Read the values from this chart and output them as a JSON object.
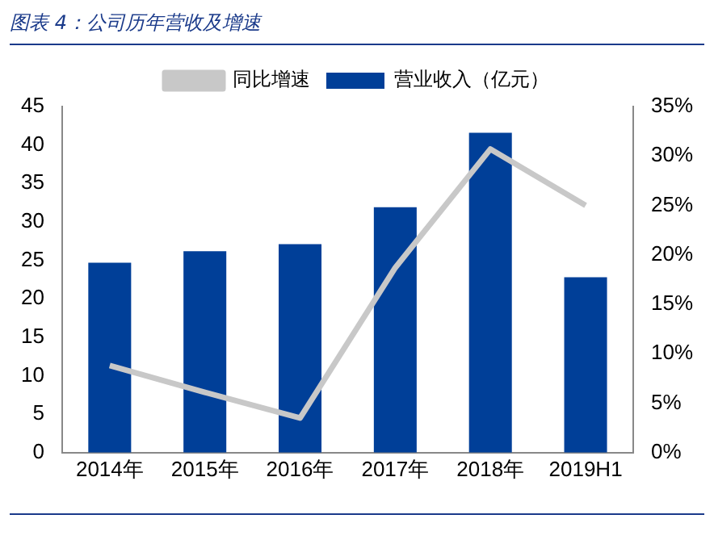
{
  "chart_data": {
    "type": "bar",
    "title": "图表 4：公司历年营收及增速",
    "categories": [
      "2014年",
      "2015年",
      "2016年",
      "2017年",
      "2018年",
      "2019H1"
    ],
    "series": [
      {
        "name": "营业收入（亿元）",
        "color": "#003f98",
        "values": [
          24.7,
          26.2,
          27.1,
          31.9,
          41.6,
          22.8
        ]
      },
      {
        "name": "同比增速",
        "type": "line",
        "axis": "y2",
        "color": "#c8c8c8",
        "marker": "none",
        "values": [
          8.8,
          6.1,
          3.5,
          18.7,
          30.7,
          25.0
        ]
      }
    ],
    "ylim": [
      0,
      45
    ],
    "yticks": [
      0,
      5,
      10,
      15,
      20,
      25,
      30,
      35,
      40,
      45
    ],
    "y2lim": [
      0,
      35
    ],
    "y2ticks": [
      {
        "value": 0,
        "label": "0%"
      },
      {
        "value": 5,
        "label": "5%"
      },
      {
        "value": 10,
        "label": "10%"
      },
      {
        "value": 15,
        "label": "15%"
      },
      {
        "value": 20,
        "label": "20%"
      },
      {
        "value": 25,
        "label": "25%"
      },
      {
        "value": 30,
        "label": "30%"
      },
      {
        "value": 35,
        "label": "35%"
      }
    ],
    "grid": false,
    "legend": "top"
  }
}
